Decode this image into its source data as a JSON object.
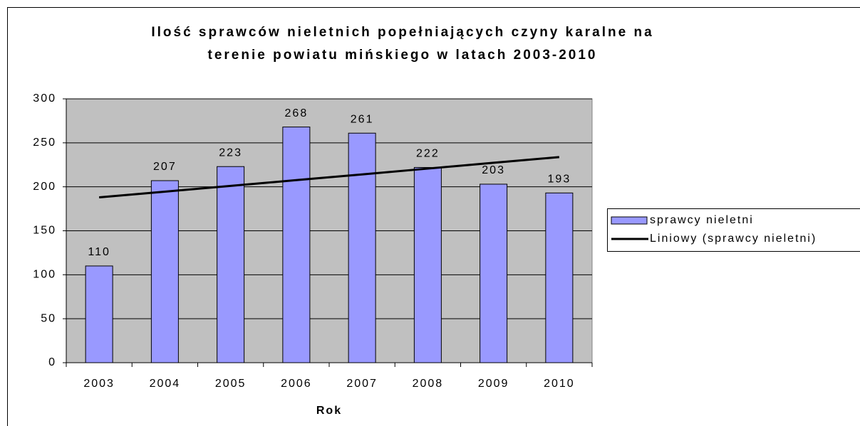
{
  "chart_data": {
    "type": "bar",
    "title": [
      "Ilość sprawców nieletnich popełniających czyny karalne na",
      "terenie powiatu mińskiego w latach 2003-2010"
    ],
    "x_label": "Rok",
    "categories": [
      "2003",
      "2004",
      "2005",
      "2006",
      "2007",
      "2008",
      "2009",
      "2010"
    ],
    "series": [
      {
        "name": "sprawcy nieletni",
        "type": "bar",
        "color": "#9999ff",
        "values": [
          110,
          207,
          223,
          268,
          261,
          222,
          203,
          193
        ]
      },
      {
        "name": "Liniowy (sprawcy nieletni)",
        "type": "line",
        "color": "#000000",
        "values": [
          188,
          194.5,
          201,
          207.6,
          214.1,
          220.7,
          227.3,
          233.8
        ]
      }
    ],
    "ylim": [
      0,
      300
    ],
    "yticks": [
      0,
      50,
      100,
      150,
      200,
      250,
      300
    ],
    "grid": true,
    "plot_background": "#c0c0c0"
  }
}
